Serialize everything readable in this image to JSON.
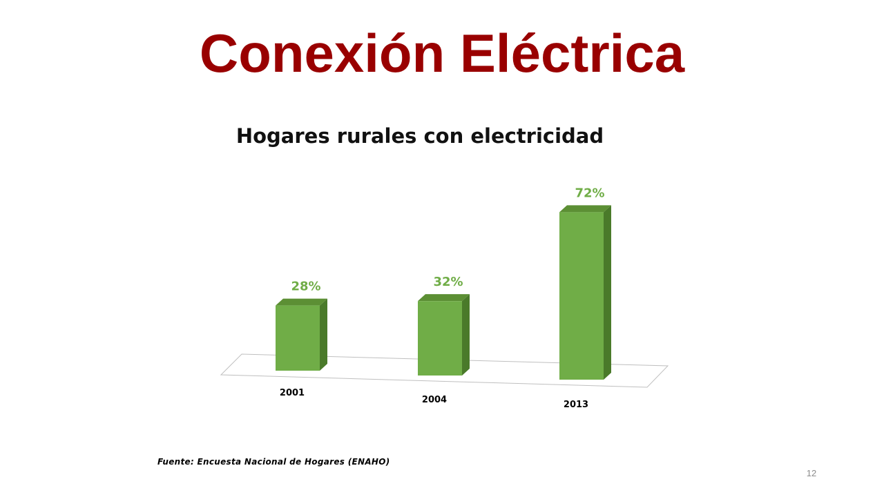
{
  "slide": {
    "title": "Conexión Eléctrica",
    "source": "Fuente: Encuesta Nacional de Hogares (ENAHO)",
    "page_number": "12"
  },
  "chart_data": {
    "type": "bar",
    "title": "Hogares rurales con electricidad",
    "categories": [
      "2001",
      "2004",
      "2013"
    ],
    "values": [
      28,
      32,
      72
    ],
    "value_labels": [
      "28%",
      "32%",
      "72%"
    ],
    "unit": "%",
    "ylim": [
      0,
      100
    ],
    "grid": false,
    "legend": "none",
    "style": "3d-column",
    "colors": {
      "bar_front": "#70ad47",
      "bar_side": "#4a7a2a",
      "bar_top": "#5c8f34",
      "value_label": "#70ad47",
      "title_color": "#990000"
    }
  }
}
